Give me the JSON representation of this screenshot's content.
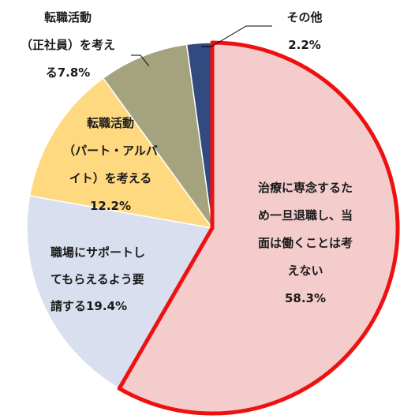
{
  "chart_data": {
    "type": "pie",
    "title": "",
    "slices": [
      {
        "label_lines": [
          "治療に専念するた",
          "め一旦退職し、当",
          "面は働くことは考",
          "えない",
          "58.3%"
        ],
        "value": 58.3,
        "color": "#F4CCCC",
        "highlighted": true
      },
      {
        "label_lines": [
          "職場にサポートし",
          "てもらえるよう要",
          "請する19.4%"
        ],
        "value": 19.4,
        "color": "#D9DFEF",
        "highlighted": false
      },
      {
        "label_lines": [
          "転職活動",
          "（パート・アルバ",
          "イト）を考える",
          "12.2%"
        ],
        "value": 12.2,
        "color": "#FFD980",
        "highlighted": false
      },
      {
        "label_lines": [
          "転職活動",
          "（正社員）を考え",
          "る7.8%"
        ],
        "value": 7.8,
        "color": "#A5A27E",
        "highlighted": false
      },
      {
        "label_lines": [
          "その他",
          "2.2%"
        ],
        "value": 2.2,
        "color": "#324A7F",
        "highlighted": false
      }
    ],
    "start_angle": "top, clockwise",
    "highlight_color": "#EE1111",
    "legend": "none"
  }
}
